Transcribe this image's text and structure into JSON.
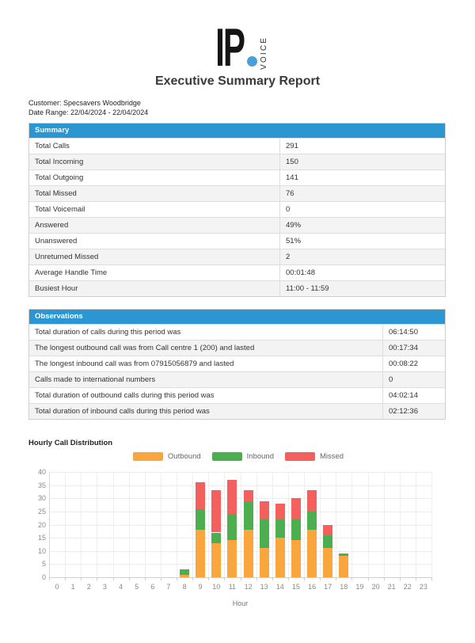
{
  "logo": {
    "text": "IP",
    "vertical_text": "VOICE",
    "dot_color": "#4B9FD9"
  },
  "title": "Executive Summary Report",
  "meta": {
    "customer": "Customer: Specsavers Woodbridge",
    "date_range": "Date Range: 22/04/2024 - 22/04/2024"
  },
  "summary_table": {
    "header": "Summary",
    "rows": [
      {
        "label": "Total Calls",
        "value": "291"
      },
      {
        "label": "Total Incoming",
        "value": "150"
      },
      {
        "label": "Total Outgoing",
        "value": "141"
      },
      {
        "label": "Total Missed",
        "value": "76"
      },
      {
        "label": "Total Voicemail",
        "value": "0"
      },
      {
        "label": "Answered",
        "value": "49%"
      },
      {
        "label": "Unanswered",
        "value": "51%"
      },
      {
        "label": "Unreturned Missed",
        "value": "2"
      },
      {
        "label": "Average Handle Time",
        "value": "00:01:48"
      },
      {
        "label": "Busiest Hour",
        "value": "11:00 - 11:59"
      }
    ]
  },
  "observations_table": {
    "header": "Observations",
    "rows": [
      {
        "label": "Total duration of calls during this period was",
        "value": "06:14:50"
      },
      {
        "label": "The longest outbound call was from Call centre 1 (200) and lasted",
        "value": "00:17:34"
      },
      {
        "label": "The longest inbound call was from 07915056879 and lasted",
        "value": "00:08:22"
      },
      {
        "label": "Calls made to international numbers",
        "value": "0"
      },
      {
        "label": "Total duration of outbound calls during this period was",
        "value": "04:02:14"
      },
      {
        "label": "Total duration of inbound calls during this period was",
        "value": "02:12:36"
      }
    ]
  },
  "chart_data": {
    "type": "bar",
    "stacked": true,
    "title": "Hourly Call Distribution",
    "xlabel": "Hour",
    "ylim": [
      0,
      40
    ],
    "ytick_step": 5,
    "grid": true,
    "legend_position": "top",
    "categories": [
      0,
      1,
      2,
      3,
      4,
      5,
      6,
      7,
      8,
      9,
      10,
      11,
      12,
      13,
      14,
      15,
      16,
      17,
      18,
      19,
      20,
      21,
      22,
      23
    ],
    "series": [
      {
        "name": "Outbound",
        "color": "#F9A63F",
        "values": [
          0,
          0,
          0,
          0,
          0,
          0,
          0,
          0,
          1,
          18,
          13,
          14,
          18,
          11,
          15,
          14,
          18,
          11,
          8,
          0,
          0,
          0,
          0,
          0
        ]
      },
      {
        "name": "Inbound",
        "color": "#4CAE4F",
        "values": [
          0,
          0,
          0,
          0,
          0,
          0,
          0,
          0,
          2,
          8,
          4,
          10,
          11,
          11,
          7,
          8,
          7,
          5,
          1,
          0,
          0,
          0,
          0,
          0
        ]
      },
      {
        "name": "Missed",
        "color": "#F4605E",
        "values": [
          0,
          0,
          0,
          0,
          0,
          0,
          0,
          0,
          0,
          10,
          16,
          13,
          4,
          7,
          6,
          8,
          8,
          4,
          0,
          0,
          0,
          0,
          0,
          0
        ]
      }
    ]
  },
  "colors": {
    "table_header_bg": "#2B96D2",
    "row_alt_bg": "#f3f3f3",
    "outbound": "#F9A63F",
    "inbound": "#4CAE4F",
    "missed": "#F4605E"
  }
}
